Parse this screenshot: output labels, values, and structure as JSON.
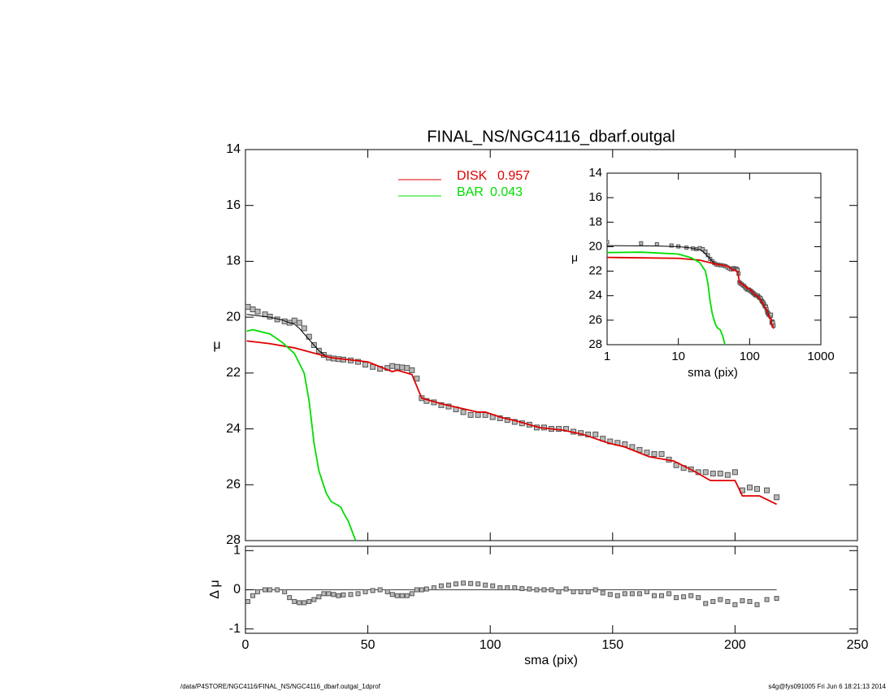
{
  "chart_data": [
    {
      "type": "line",
      "title": "FINAL_NS/NGC4116_dbarf.outgal",
      "ylabel": "μ",
      "ylim": [
        28,
        14
      ],
      "yticks": [
        14,
        16,
        18,
        20,
        22,
        24,
        26,
        28
      ],
      "series": [
        {
          "marker": "square",
          "color": "#555555",
          "x": [
            1,
            3,
            5,
            8,
            10,
            13,
            16,
            18,
            20,
            22,
            24,
            26,
            28,
            30,
            32,
            34,
            36,
            38,
            40,
            43,
            46,
            49,
            52,
            55,
            58,
            60,
            62,
            64,
            66,
            68,
            70,
            72,
            74,
            77,
            80,
            83,
            86,
            89,
            92,
            95,
            98,
            101,
            104,
            107,
            110,
            113,
            116,
            119,
            122,
            125,
            128,
            131,
            134,
            137,
            140,
            143,
            146,
            149,
            152,
            155,
            158,
            161,
            164,
            167,
            170,
            173,
            176,
            179,
            182,
            185,
            188,
            191,
            194,
            197,
            200,
            203,
            206,
            209,
            213,
            217
          ],
          "values": [
            19.63,
            19.72,
            19.8,
            19.9,
            19.98,
            20.08,
            20.15,
            20.2,
            20.12,
            20.2,
            20.4,
            20.7,
            21.0,
            21.2,
            21.35,
            21.45,
            21.48,
            21.5,
            21.52,
            21.55,
            21.6,
            21.7,
            21.78,
            21.85,
            21.82,
            21.75,
            21.78,
            21.8,
            21.82,
            21.9,
            22.2,
            22.9,
            23.0,
            23.05,
            23.15,
            23.2,
            23.3,
            23.4,
            23.5,
            23.5,
            23.5,
            23.58,
            23.62,
            23.68,
            23.75,
            23.8,
            23.85,
            23.95,
            23.95,
            24.0,
            24.0,
            24.0,
            24.1,
            24.15,
            24.2,
            24.2,
            24.35,
            24.45,
            24.5,
            24.55,
            24.65,
            24.75,
            24.85,
            24.9,
            24.9,
            25.1,
            25.3,
            25.4,
            25.45,
            25.55,
            25.55,
            25.6,
            25.6,
            25.65,
            25.55,
            26.2,
            26.1,
            26.15,
            26.2,
            26.45
          ]
        },
        {
          "color": "#000000",
          "x": [
            0.5,
            5,
            10,
            15,
            18,
            20,
            22,
            24,
            26,
            28,
            30,
            33,
            35,
            40
          ],
          "values": [
            19.9,
            19.95,
            20.0,
            20.1,
            20.2,
            20.25,
            20.4,
            20.6,
            20.8,
            21.0,
            21.2,
            21.4,
            21.45,
            21.5
          ]
        },
        {
          "name": "DISK",
          "fraction": 0.957,
          "color": "#e00000",
          "x": [
            0.5,
            10,
            20,
            35,
            50,
            60,
            62,
            68,
            72,
            80,
            95,
            98,
            105,
            110,
            120,
            130,
            138,
            148,
            155,
            165,
            175,
            183,
            190,
            200,
            203,
            210,
            217
          ],
          "values": [
            20.85,
            20.95,
            21.1,
            21.45,
            21.6,
            21.95,
            21.9,
            22.05,
            22.9,
            23.1,
            23.4,
            23.4,
            23.6,
            23.7,
            23.95,
            24.05,
            24.2,
            24.5,
            24.65,
            25.0,
            25.15,
            25.5,
            25.85,
            25.85,
            26.4,
            26.4,
            26.7
          ]
        },
        {
          "name": "BAR",
          "fraction": 0.043,
          "color": "#00dd00",
          "x": [
            0.5,
            3,
            10,
            15,
            20,
            24,
            26,
            28,
            30,
            33,
            35,
            39,
            40,
            42,
            45
          ],
          "values": [
            20.5,
            20.45,
            20.6,
            20.9,
            21.3,
            22.0,
            23.0,
            24.5,
            25.5,
            26.3,
            26.6,
            26.8,
            27.0,
            27.3,
            28.0
          ]
        }
      ]
    },
    {
      "type": "line",
      "xscale": "log",
      "xlabel": "sma (pix)",
      "ylabel": "μ",
      "xlim": [
        1,
        1000
      ],
      "xticks": [
        1,
        10,
        100,
        1000
      ],
      "ylim": [
        28,
        14
      ],
      "yticks": [
        14,
        16,
        18,
        20,
        22,
        24,
        26,
        28
      ]
    },
    {
      "type": "scatter",
      "xlabel": "sma (pix)",
      "ylabel": "Δ μ",
      "xlim": [
        0,
        250
      ],
      "xticks": [
        0,
        50,
        100,
        150,
        200,
        250
      ],
      "ylim": [
        -1.11,
        1.11
      ],
      "yticks": [
        -1,
        0,
        1
      ],
      "series": [
        {
          "marker": "square",
          "color": "#555555",
          "x": [
            1,
            3,
            5,
            8,
            10,
            13,
            16,
            18,
            20,
            22,
            24,
            26,
            28,
            30,
            32,
            34,
            36,
            38,
            40,
            43,
            46,
            49,
            52,
            55,
            58,
            60,
            62,
            64,
            66,
            68,
            70,
            72,
            74,
            77,
            80,
            83,
            86,
            89,
            92,
            95,
            98,
            101,
            104,
            107,
            110,
            113,
            116,
            119,
            122,
            125,
            128,
            131,
            134,
            137,
            140,
            143,
            146,
            149,
            152,
            155,
            158,
            161,
            164,
            167,
            170,
            173,
            176,
            179,
            182,
            185,
            188,
            191,
            194,
            197,
            200,
            203,
            206,
            209,
            213,
            217
          ],
          "values": [
            -0.3,
            -0.15,
            -0.05,
            0,
            0,
            0,
            -0.05,
            -0.2,
            -0.3,
            -0.33,
            -0.33,
            -0.3,
            -0.25,
            -0.18,
            -0.1,
            -0.1,
            -0.12,
            -0.15,
            -0.13,
            -0.12,
            -0.1,
            -0.05,
            -0.02,
            0,
            -0.05,
            -0.12,
            -0.15,
            -0.15,
            -0.15,
            -0.1,
            0,
            0,
            0.02,
            0.05,
            0.1,
            0.12,
            0.15,
            0.17,
            0.16,
            0.15,
            0.12,
            0.1,
            0.05,
            0.05,
            0.05,
            0.03,
            0.02,
            0,
            0,
            0,
            -0.05,
            0.02,
            -0.05,
            -0.05,
            -0.05,
            0,
            -0.08,
            -0.12,
            -0.15,
            -0.1,
            -0.1,
            -0.1,
            -0.05,
            -0.15,
            -0.15,
            -0.1,
            -0.2,
            -0.18,
            -0.15,
            -0.2,
            -0.35,
            -0.3,
            -0.25,
            -0.3,
            -0.38,
            -0.28,
            -0.3,
            -0.38,
            -0.25,
            -0.22
          ]
        }
      ]
    }
  ],
  "footer": {
    "left": "/data/P4STORE/NGC4116/FINAL_NS/NGC4116_dbarf.outgal_1dprof",
    "right": "s4g@fys091005  Fri Jun  6 18:21:13 2014"
  }
}
